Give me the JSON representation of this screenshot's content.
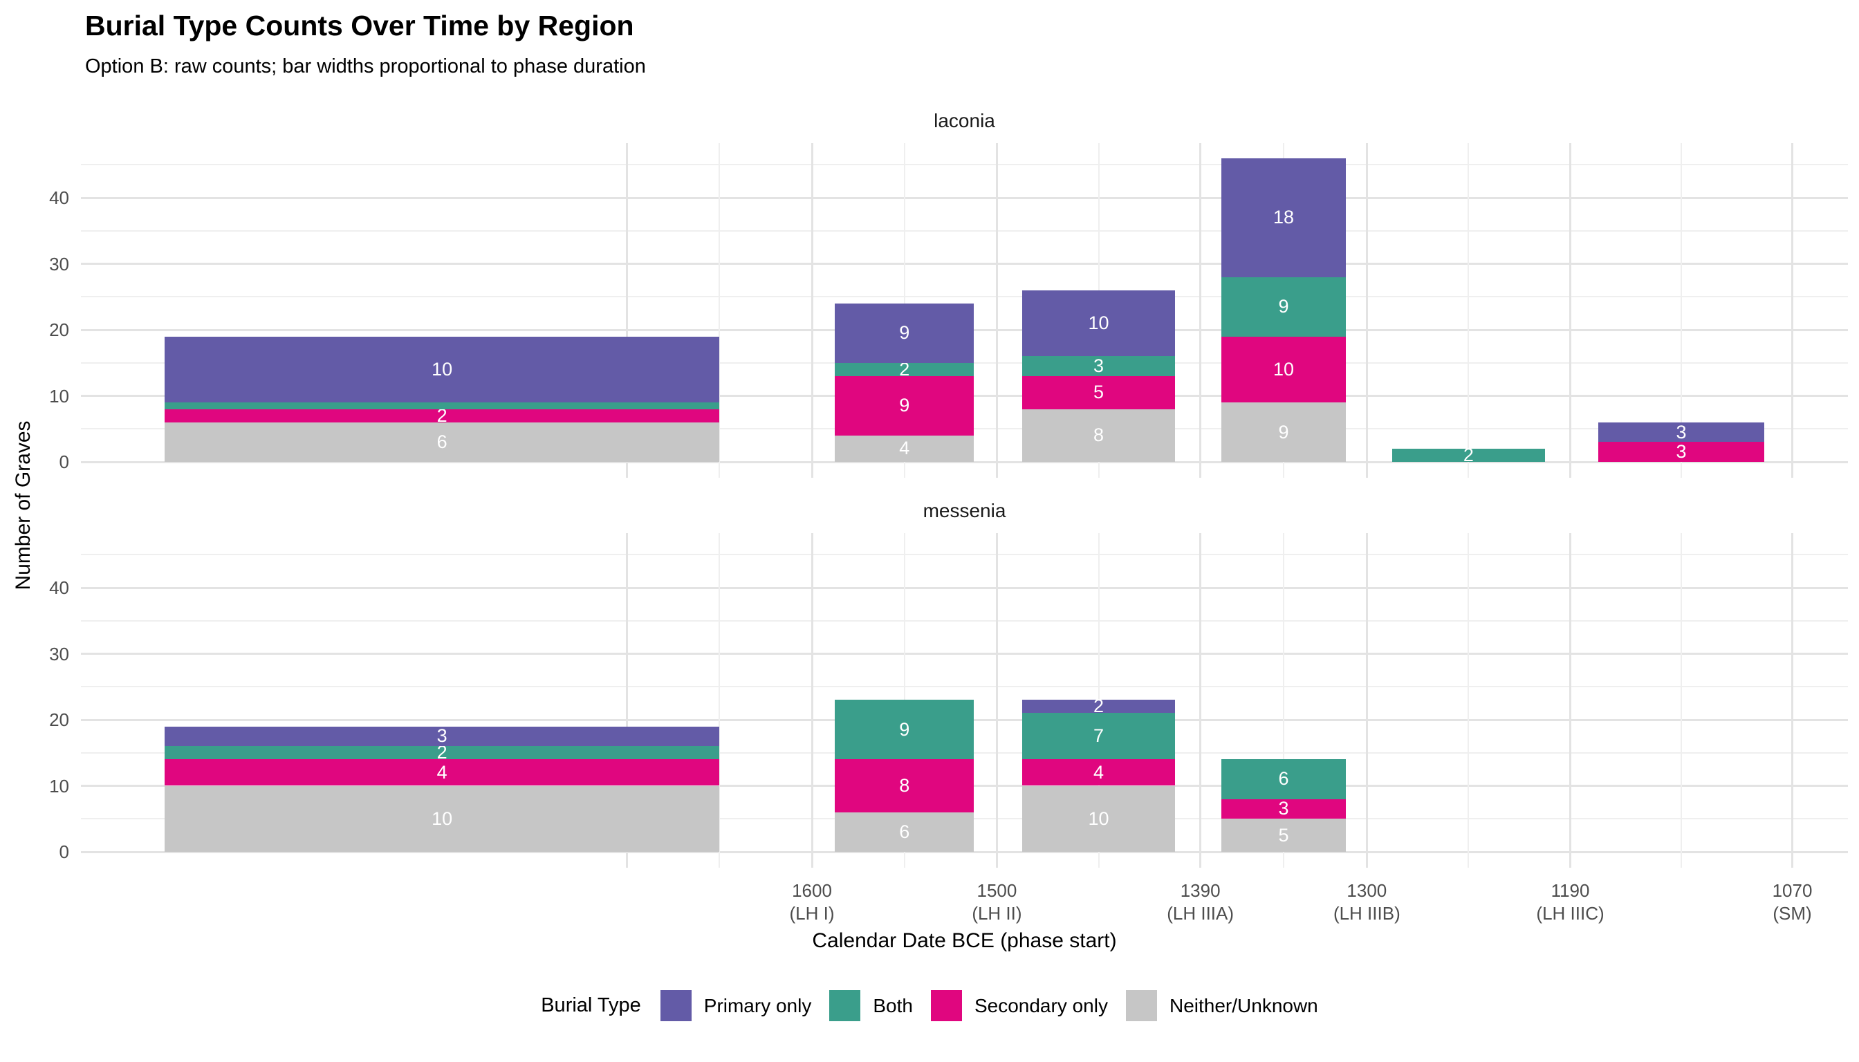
{
  "header": {
    "title": "Burial Type Counts Over Time by Region",
    "subtitle": "Option B: raw counts; bar widths proportional to phase duration"
  },
  "axes": {
    "x_title": "Calendar Date BCE (phase start)",
    "y_title": "Number of Graves"
  },
  "legend": {
    "title": "Burial Type"
  },
  "chart_data": {
    "type": "bar",
    "stacked": true,
    "orientation": "vertical",
    "note": "faceted by region; bar widths proportional to phase duration; x is calendar years BCE decreasing to the right",
    "y_axis": {
      "label": "Number of Graves",
      "ticks": [
        0,
        10,
        20,
        30,
        40
      ],
      "minor_ticks": [
        5,
        15,
        25,
        35,
        45
      ],
      "range": [
        0,
        48
      ]
    },
    "x_axis": {
      "label": "Calendar Date BCE (phase start)",
      "ticks": [
        {
          "year": 1600,
          "phase": "(LH I)"
        },
        {
          "year": 1500,
          "phase": "(LH II)"
        },
        {
          "year": 1390,
          "phase": "(LH IIIA)"
        },
        {
          "year": 1300,
          "phase": "(LH IIIB)"
        },
        {
          "year": 1190,
          "phase": "(LH IIIC)"
        },
        {
          "year": 1070,
          "phase": "(SM)"
        }
      ],
      "unlabeled_gridline_year": 1700
    },
    "series": [
      {
        "id": "primary",
        "label": "Primary only",
        "color": "#635BA7"
      },
      {
        "id": "both",
        "label": "Both",
        "color": "#3A9E8B"
      },
      {
        "id": "secondary",
        "label": "Secondary only",
        "color": "#E0067F"
      },
      {
        "id": "neither",
        "label": "Neither/Unknown",
        "color": "#C6C6C6"
      }
    ],
    "stack_order_bottom_to_top": [
      "neither",
      "secondary",
      "both",
      "primary"
    ],
    "label_rule": "segment values >= 2 are labeled in white inside the segment",
    "facets": [
      {
        "name": "laconia",
        "bars": [
          {
            "phase": [
              2000,
              1600
            ],
            "segments": [
              {
                "type": "neither",
                "value": 6
              },
              {
                "type": "secondary",
                "value": 2
              },
              {
                "type": "both",
                "value": 1
              },
              {
                "type": "primary",
                "value": 10
              }
            ]
          },
          {
            "phase": [
              1600,
              1500
            ],
            "segments": [
              {
                "type": "neither",
                "value": 4
              },
              {
                "type": "secondary",
                "value": 9
              },
              {
                "type": "both",
                "value": 2
              },
              {
                "type": "primary",
                "value": 9
              }
            ]
          },
          {
            "phase": [
              1500,
              1390
            ],
            "segments": [
              {
                "type": "neither",
                "value": 8
              },
              {
                "type": "secondary",
                "value": 5
              },
              {
                "type": "both",
                "value": 3
              },
              {
                "type": "primary",
                "value": 10
              }
            ]
          },
          {
            "phase": [
              1390,
              1300
            ],
            "segments": [
              {
                "type": "neither",
                "value": 9
              },
              {
                "type": "secondary",
                "value": 10
              },
              {
                "type": "both",
                "value": 9
              },
              {
                "type": "primary",
                "value": 18
              }
            ]
          },
          {
            "phase": [
              1300,
              1190
            ],
            "segments": [
              {
                "type": "both",
                "value": 2
              }
            ]
          },
          {
            "phase": [
              1190,
              1070
            ],
            "segments": [
              {
                "type": "secondary",
                "value": 3
              },
              {
                "type": "primary",
                "value": 3
              }
            ]
          }
        ]
      },
      {
        "name": "messenia",
        "bars": [
          {
            "phase": [
              2000,
              1600
            ],
            "segments": [
              {
                "type": "neither",
                "value": 10
              },
              {
                "type": "secondary",
                "value": 4
              },
              {
                "type": "both",
                "value": 2
              },
              {
                "type": "primary",
                "value": 3
              }
            ]
          },
          {
            "phase": [
              1600,
              1500
            ],
            "segments": [
              {
                "type": "neither",
                "value": 6
              },
              {
                "type": "secondary",
                "value": 8
              },
              {
                "type": "both",
                "value": 9
              }
            ]
          },
          {
            "phase": [
              1500,
              1390
            ],
            "segments": [
              {
                "type": "neither",
                "value": 10
              },
              {
                "type": "secondary",
                "value": 4
              },
              {
                "type": "both",
                "value": 7
              },
              {
                "type": "primary",
                "value": 2
              }
            ]
          },
          {
            "phase": [
              1390,
              1300
            ],
            "segments": [
              {
                "type": "neither",
                "value": 5
              },
              {
                "type": "secondary",
                "value": 3
              },
              {
                "type": "both",
                "value": 6
              }
            ]
          }
        ]
      }
    ]
  }
}
